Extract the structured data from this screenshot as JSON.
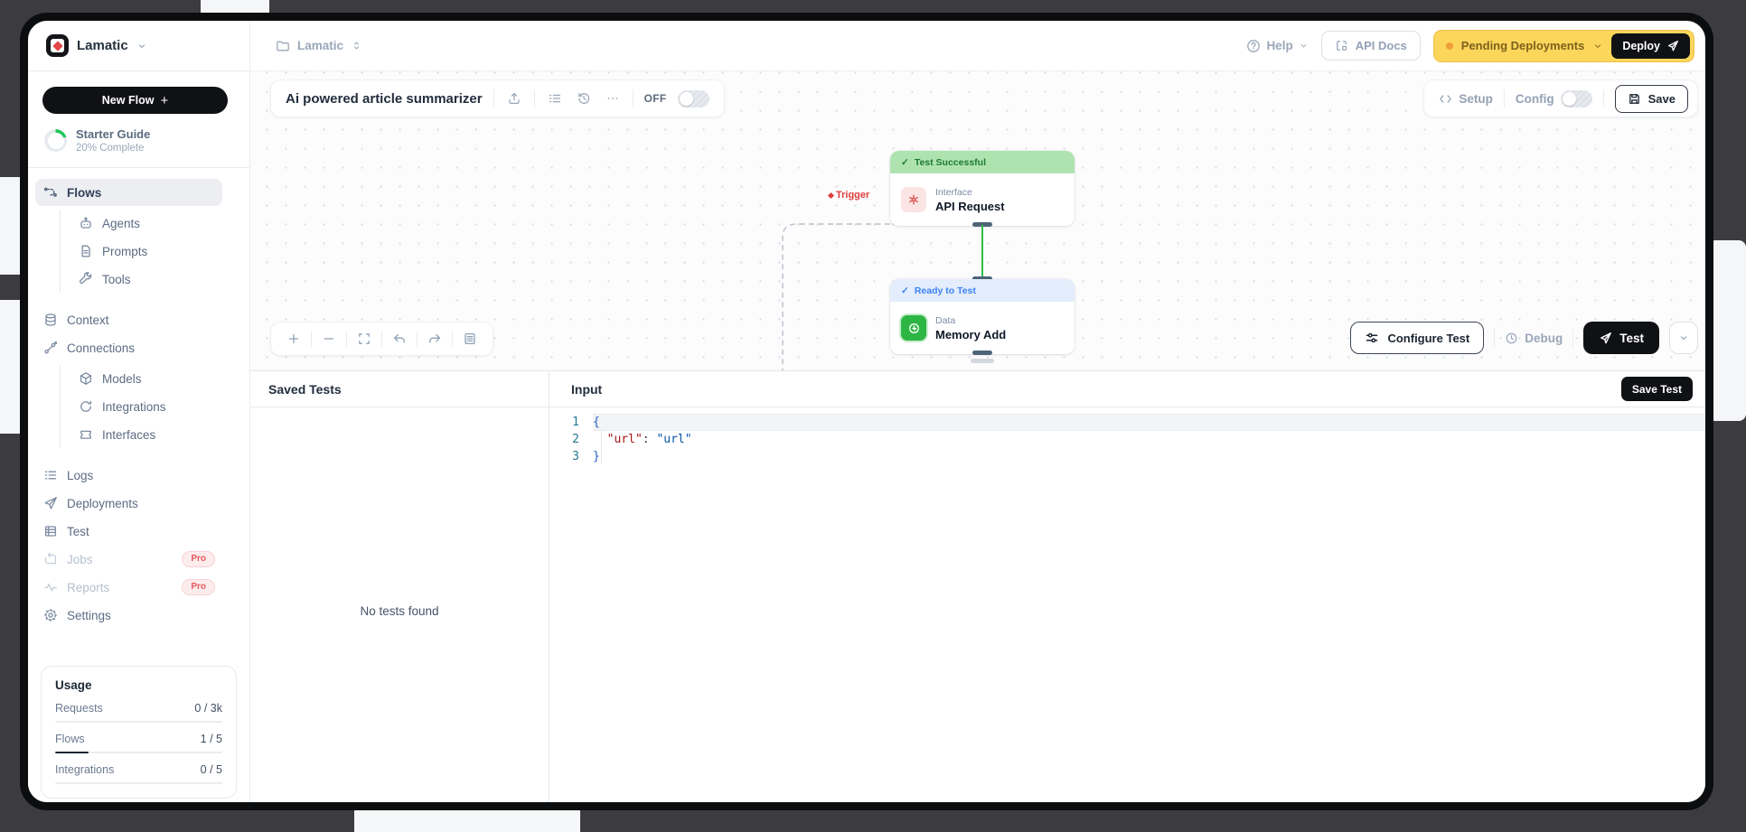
{
  "brand": {
    "name": "Lamatic"
  },
  "sidebar": {
    "new_flow_label": "New Flow",
    "new_flow_plus": "+",
    "starter_guide": {
      "title": "Starter Guide",
      "subtitle": "20% Complete",
      "percent": 20
    },
    "nav": [
      {
        "label": "Flows"
      },
      {
        "label": "Agents"
      },
      {
        "label": "Prompts"
      },
      {
        "label": "Tools"
      },
      {
        "label": "Context"
      },
      {
        "label": "Connections"
      },
      {
        "label": "Models"
      },
      {
        "label": "Integrations"
      },
      {
        "label": "Interfaces"
      },
      {
        "label": "Logs"
      },
      {
        "label": "Deployments"
      },
      {
        "label": "Test"
      },
      {
        "label": "Jobs",
        "badge": "Pro"
      },
      {
        "label": "Reports",
        "badge": "Pro"
      },
      {
        "label": "Settings"
      }
    ],
    "usage": {
      "title": "Usage",
      "rows": [
        {
          "label": "Requests",
          "value": "0 / 3k",
          "percent": 0
        },
        {
          "label": "Flows",
          "value": "1 / 5",
          "percent": 20
        },
        {
          "label": "Integrations",
          "value": "0 / 5",
          "percent": 0
        }
      ]
    }
  },
  "topbar": {
    "workspace": "Lamatic",
    "help": "Help",
    "api_docs": "API Docs",
    "pending_deployments": "Pending Deployments",
    "deploy": "Deploy"
  },
  "flow_header": {
    "title": "Ai powered article summarizer",
    "off_label": "OFF",
    "setup": "Setup",
    "config": "Config",
    "save": "Save"
  },
  "canvas": {
    "trigger_label": "Trigger",
    "nodes": [
      {
        "check": "✓",
        "status": "Test Successful",
        "category": "Interface",
        "title": "API Request"
      },
      {
        "check": "✓",
        "status": "Ready to Test",
        "category": "Data",
        "title": "Memory Add"
      }
    ]
  },
  "actions": {
    "configure_test": "Configure Test",
    "debug": "Debug",
    "test": "Test"
  },
  "test_panel": {
    "saved_tests_title": "Saved Tests",
    "empty_message": "No tests found",
    "input_title": "Input",
    "save_test": "Save Test",
    "editor": {
      "line_numbers": [
        "1",
        "2",
        "3"
      ],
      "line1": "{",
      "line2_indent": "  ",
      "line2_key": "\"url\"",
      "line2_sep": ": ",
      "line2_value": "\"url\"",
      "line3": "}"
    }
  },
  "colors": {
    "accent_yellow": "#fcd65b",
    "deploy_black": "#101114",
    "success_green": "#22c55e",
    "banner_green": "#aee3b0",
    "banner_blue": "#e4edfb",
    "pro_red": "#e5484d",
    "trigger_red": "#e03e3e"
  }
}
